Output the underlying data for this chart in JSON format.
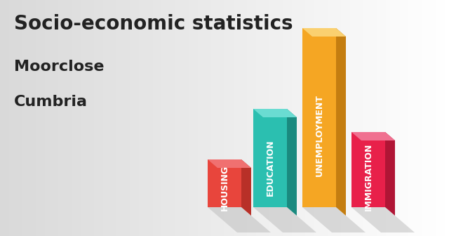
{
  "title": "Socio-economic statistics",
  "subtitle1": "Moorclose",
  "subtitle2": "Cumbria",
  "categories": [
    "HOUSING",
    "EDUCATION",
    "UNEMPLOYMENT",
    "IMMIGRATION"
  ],
  "values": [
    0.27,
    0.55,
    1.0,
    0.42
  ],
  "bar_colors_front": [
    "#E8453C",
    "#2BBFB0",
    "#F5A623",
    "#E8204A"
  ],
  "bar_colors_side": [
    "#B83028",
    "#1A8A7F",
    "#C47D10",
    "#B01535"
  ],
  "bar_colors_top": [
    "#F07070",
    "#6ADCD2",
    "#FAD070",
    "#F07090"
  ],
  "bg_gradient_left": "#C8C8C8",
  "bg_gradient_right": "#E8E8E8",
  "title_color": "#222222",
  "title_fontsize": 20,
  "subtitle_fontsize": 16,
  "label_fontsize": 9
}
